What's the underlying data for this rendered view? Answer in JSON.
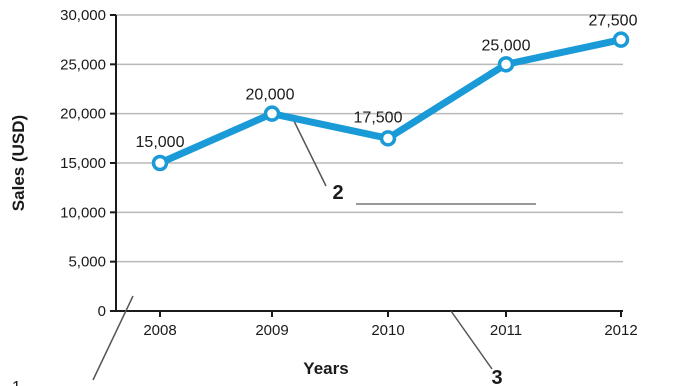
{
  "chart_data": {
    "type": "line",
    "xlabel": "Years",
    "ylabel": "Sales (USD)",
    "x": [
      "2008",
      "2009",
      "2010",
      "2011",
      "2012"
    ],
    "series": [
      {
        "values": [
          15000,
          20000,
          17500,
          25000,
          27500
        ],
        "color": "#1a9ad6"
      }
    ],
    "data_labels": [
      "15,000",
      "20,000",
      "17,500",
      "25,000",
      "27,500"
    ],
    "yticks": [
      0,
      5000,
      10000,
      15000,
      20000,
      25000,
      30000
    ],
    "ytick_labels": [
      "0",
      "5,000",
      "10,000",
      "15,000",
      "20,000",
      "25,000",
      "30,000"
    ],
    "ylim": [
      0,
      30000
    ],
    "grid": true,
    "annotations": [
      "2",
      "3"
    ],
    "bottom_fragment": "1"
  }
}
